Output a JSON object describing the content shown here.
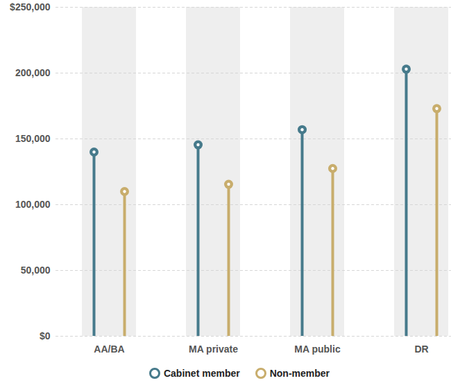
{
  "chart_data": {
    "type": "lollipop",
    "categories": [
      "AA/BA",
      "MA private",
      "MA public",
      "DR"
    ],
    "series": [
      {
        "name": "Cabinet member",
        "color": "#467a8b",
        "values": [
          140000,
          145500,
          157000,
          203000
        ]
      },
      {
        "name": "Non-member",
        "color": "#c8ad6c",
        "values": [
          110000,
          115500,
          127500,
          173000
        ]
      }
    ],
    "ylim": [
      0,
      250000
    ],
    "yticks": [
      {
        "value": 0,
        "label": "$0"
      },
      {
        "value": 50000,
        "label": "50,000"
      },
      {
        "value": 100000,
        "label": "100,000"
      },
      {
        "value": 150000,
        "label": "150,000"
      },
      {
        "value": 200000,
        "label": "200,000"
      },
      {
        "value": 250000,
        "label": "$250,000"
      }
    ],
    "grid": true,
    "legend": "bottom"
  }
}
